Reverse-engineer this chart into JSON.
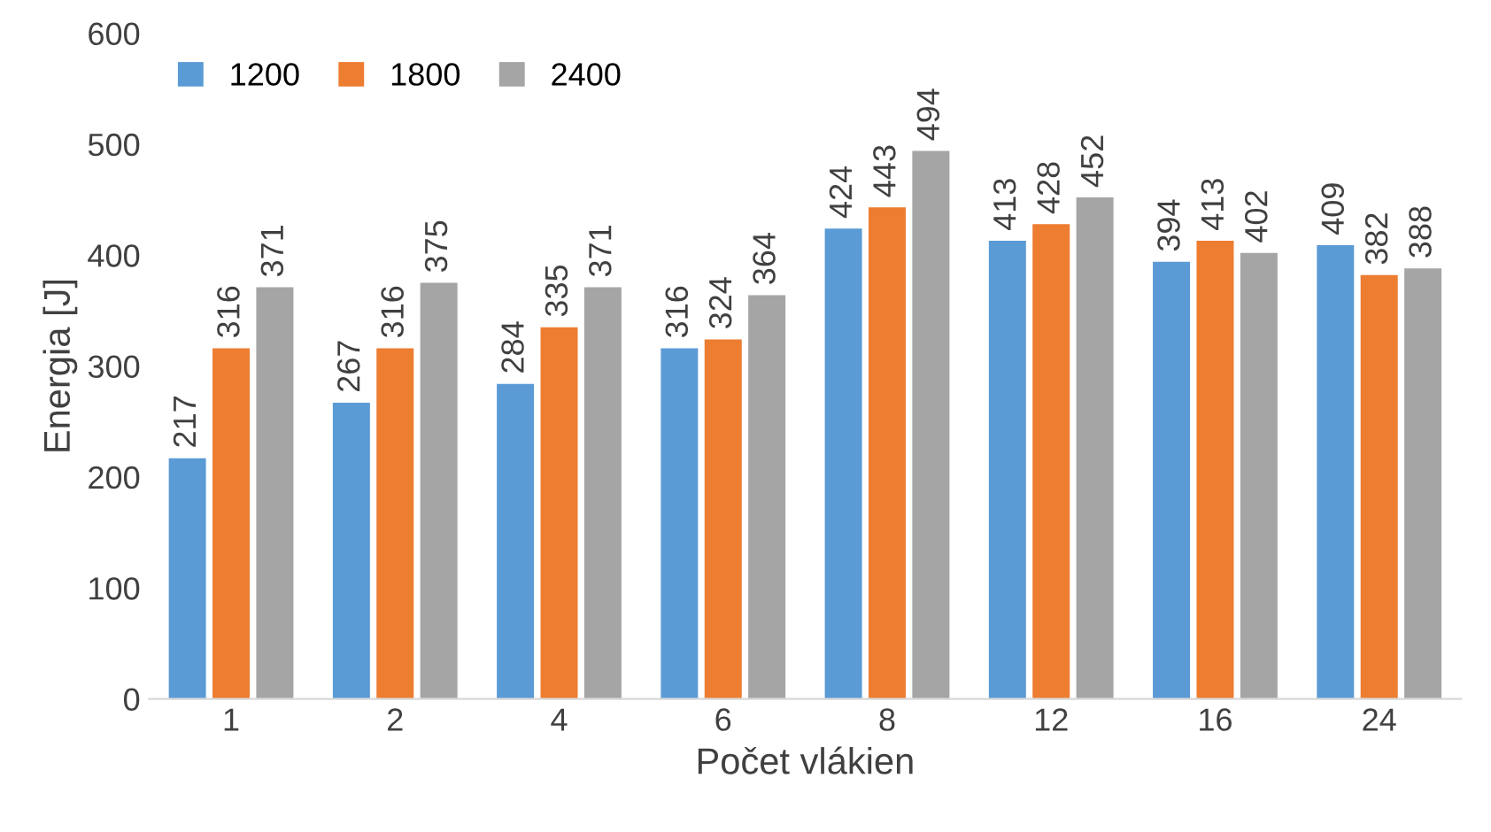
{
  "chart_data": {
    "type": "bar",
    "xlabel": "Počet vlákien",
    "ylabel": "Energia [J]",
    "categories": [
      "1",
      "2",
      "4",
      "6",
      "8",
      "12",
      "16",
      "24"
    ],
    "series": [
      {
        "name": "1200",
        "color": "#5b9bd5",
        "values": [
          217,
          267,
          284,
          316,
          424,
          413,
          394,
          409
        ]
      },
      {
        "name": "1800",
        "color": "#ed7d31",
        "values": [
          316,
          316,
          335,
          324,
          443,
          428,
          413,
          382
        ]
      },
      {
        "name": "2400",
        "color": "#a5a5a5",
        "values": [
          371,
          375,
          371,
          364,
          494,
          452,
          402,
          388
        ]
      }
    ],
    "ylim": [
      0,
      600
    ],
    "yticks": [
      0,
      100,
      200,
      300,
      400,
      500,
      600
    ],
    "grid": false,
    "legend": "top left",
    "data_labels": true
  }
}
